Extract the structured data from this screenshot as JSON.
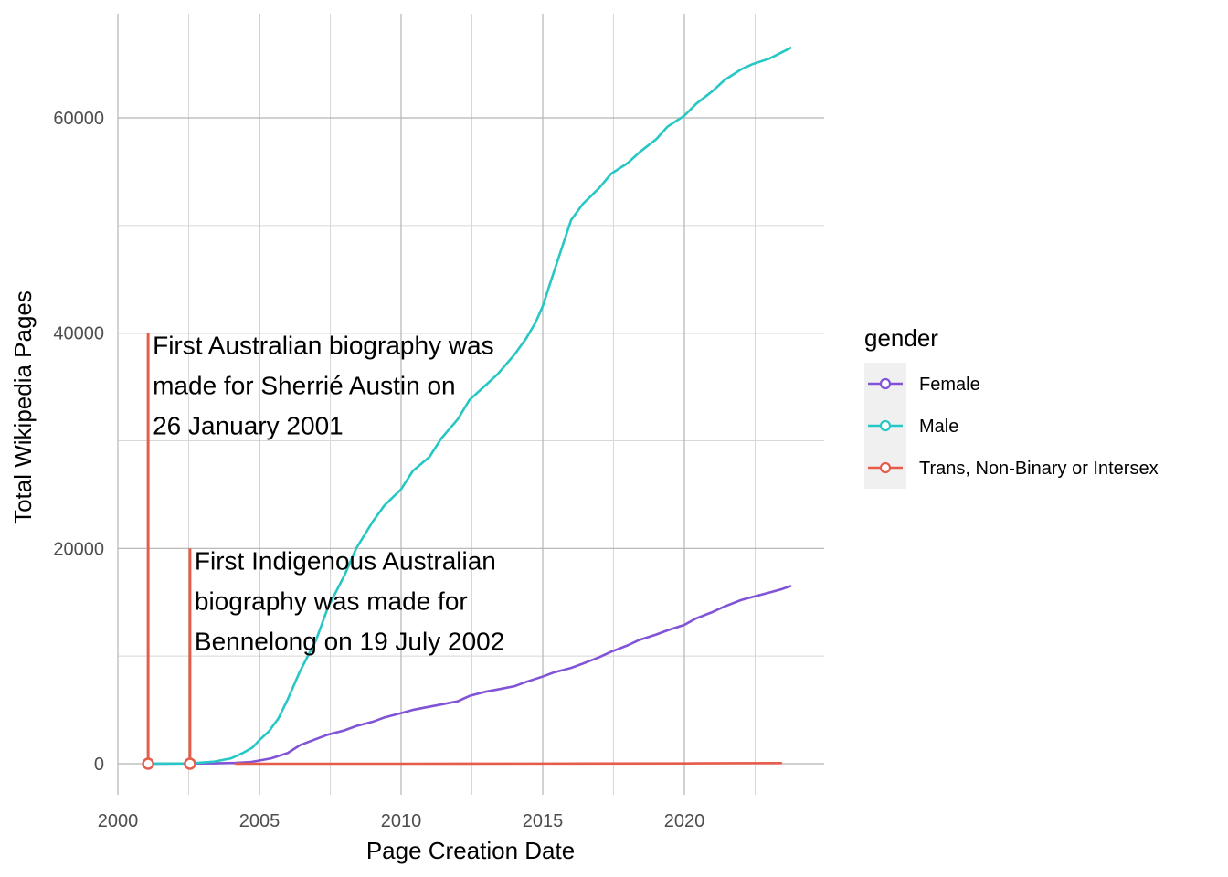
{
  "chart_data": {
    "type": "line",
    "title": "",
    "xlabel": "Page Creation Date",
    "ylabel": "Total Wikipedia Pages",
    "xlim": [
      "2000-01-01",
      "2024-12-31"
    ],
    "ylim": [
      -3000,
      68000
    ],
    "x_ticks": [
      {
        "value": 2000,
        "label": "2000"
      },
      {
        "value": 2005,
        "label": "2005"
      },
      {
        "value": 2010,
        "label": "2010"
      },
      {
        "value": 2015,
        "label": "2015"
      },
      {
        "value": 2020,
        "label": "2020"
      }
    ],
    "y_ticks": [
      {
        "value": 0,
        "label": "0"
      },
      {
        "value": 20000,
        "label": "20000"
      },
      {
        "value": 40000,
        "label": "40000"
      },
      {
        "value": 60000,
        "label": "60000"
      }
    ],
    "grid": true,
    "legend": {
      "title": "gender",
      "position": "right"
    },
    "colors": {
      "female": "#8153d6",
      "male": "#27c7c5",
      "trans": "#e65c4a",
      "grid_major": "#b3b3b3",
      "grid_minor": "#d8d8d8",
      "legend_key_bg": "#f0f0f0"
    },
    "series": [
      {
        "name": "Female",
        "color": "#8153d6",
        "points": [
          [
            "2001-01-26",
            0
          ],
          [
            "2002-07-19",
            20
          ],
          [
            "2003-06-01",
            40
          ],
          [
            "2004-03-01",
            80
          ],
          [
            "2004-09-01",
            150
          ],
          [
            "2005-01-01",
            300
          ],
          [
            "2005-06-01",
            500
          ],
          [
            "2006-01-01",
            1000
          ],
          [
            "2006-06-01",
            1700
          ],
          [
            "2007-01-01",
            2300
          ],
          [
            "2007-06-01",
            2700
          ],
          [
            "2008-01-01",
            3100
          ],
          [
            "2008-06-01",
            3500
          ],
          [
            "2009-01-01",
            3900
          ],
          [
            "2009-06-01",
            4300
          ],
          [
            "2010-01-01",
            4700
          ],
          [
            "2010-06-01",
            5000
          ],
          [
            "2011-01-01",
            5300
          ],
          [
            "2011-06-01",
            5500
          ],
          [
            "2012-01-01",
            5800
          ],
          [
            "2012-06-01",
            6300
          ],
          [
            "2013-01-01",
            6700
          ],
          [
            "2013-06-01",
            6900
          ],
          [
            "2014-01-01",
            7200
          ],
          [
            "2014-06-01",
            7600
          ],
          [
            "2015-01-01",
            8100
          ],
          [
            "2015-06-01",
            8500
          ],
          [
            "2016-01-01",
            8900
          ],
          [
            "2016-06-01",
            9300
          ],
          [
            "2017-01-01",
            9900
          ],
          [
            "2017-06-01",
            10400
          ],
          [
            "2018-01-01",
            11000
          ],
          [
            "2018-06-01",
            11500
          ],
          [
            "2019-01-01",
            12000
          ],
          [
            "2019-06-01",
            12400
          ],
          [
            "2020-01-01",
            12900
          ],
          [
            "2020-06-01",
            13500
          ],
          [
            "2021-01-01",
            14100
          ],
          [
            "2021-06-01",
            14600
          ],
          [
            "2022-01-01",
            15200
          ],
          [
            "2022-06-01",
            15500
          ],
          [
            "2023-01-01",
            15900
          ],
          [
            "2023-06-01",
            16200
          ],
          [
            "2023-10-01",
            16500
          ]
        ]
      },
      {
        "name": "Male",
        "color": "#27c7c5",
        "points": [
          [
            "2001-01-26",
            0
          ],
          [
            "2002-07-19",
            30
          ],
          [
            "2003-06-01",
            200
          ],
          [
            "2004-01-01",
            500
          ],
          [
            "2004-06-01",
            1000
          ],
          [
            "2004-10-01",
            1500
          ],
          [
            "2005-01-01",
            2200
          ],
          [
            "2005-05-01",
            3000
          ],
          [
            "2005-09-01",
            4200
          ],
          [
            "2006-01-01",
            6000
          ],
          [
            "2006-06-01",
            8500
          ],
          [
            "2007-01-01",
            11500
          ],
          [
            "2007-06-01",
            14500
          ],
          [
            "2008-01-01",
            17500
          ],
          [
            "2008-06-01",
            20000
          ],
          [
            "2009-01-01",
            22500
          ],
          [
            "2009-06-01",
            24000
          ],
          [
            "2010-01-01",
            25500
          ],
          [
            "2010-06-01",
            27200
          ],
          [
            "2011-01-01",
            28500
          ],
          [
            "2011-06-01",
            30200
          ],
          [
            "2012-01-01",
            32000
          ],
          [
            "2012-06-01",
            33800
          ],
          [
            "2013-01-01",
            35200
          ],
          [
            "2013-06-01",
            36200
          ],
          [
            "2014-01-01",
            38000
          ],
          [
            "2014-06-01",
            39500
          ],
          [
            "2014-10-01",
            41000
          ],
          [
            "2015-01-01",
            42500
          ],
          [
            "2015-04-01",
            44500
          ],
          [
            "2015-07-01",
            46500
          ],
          [
            "2015-10-01",
            48500
          ],
          [
            "2016-01-01",
            50500
          ],
          [
            "2016-06-01",
            52000
          ],
          [
            "2017-01-01",
            53500
          ],
          [
            "2017-06-01",
            54800
          ],
          [
            "2018-01-01",
            55800
          ],
          [
            "2018-06-01",
            56800
          ],
          [
            "2019-01-01",
            58000
          ],
          [
            "2019-06-01",
            59200
          ],
          [
            "2020-01-01",
            60200
          ],
          [
            "2020-06-01",
            61300
          ],
          [
            "2021-01-01",
            62500
          ],
          [
            "2021-06-01",
            63500
          ],
          [
            "2022-01-01",
            64500
          ],
          [
            "2022-06-01",
            65000
          ],
          [
            "2023-01-01",
            65500
          ],
          [
            "2023-10-01",
            66500
          ]
        ]
      },
      {
        "name": "Trans, Non-Binary or Intersex",
        "color": "#e65c4a",
        "points": [
          [
            "2004-03-01",
            0
          ],
          [
            "2010-01-01",
            0
          ],
          [
            "2015-01-01",
            10
          ],
          [
            "2020-01-01",
            30
          ],
          [
            "2023-06-01",
            60
          ]
        ]
      }
    ],
    "annotations": [
      {
        "date": "2001-01-26",
        "y_top": 40000,
        "color": "#e65c4a",
        "lines": [
          "First Australian biography was",
          "made for Sherrié Austin on",
          "26 January 2001"
        ]
      },
      {
        "date": "2002-07-19",
        "y_top": 20000,
        "color": "#e65c4a",
        "lines": [
          "First Indigenous Australian",
          "biography was made for",
          "Bennelong on 19 July 2002"
        ]
      }
    ]
  }
}
